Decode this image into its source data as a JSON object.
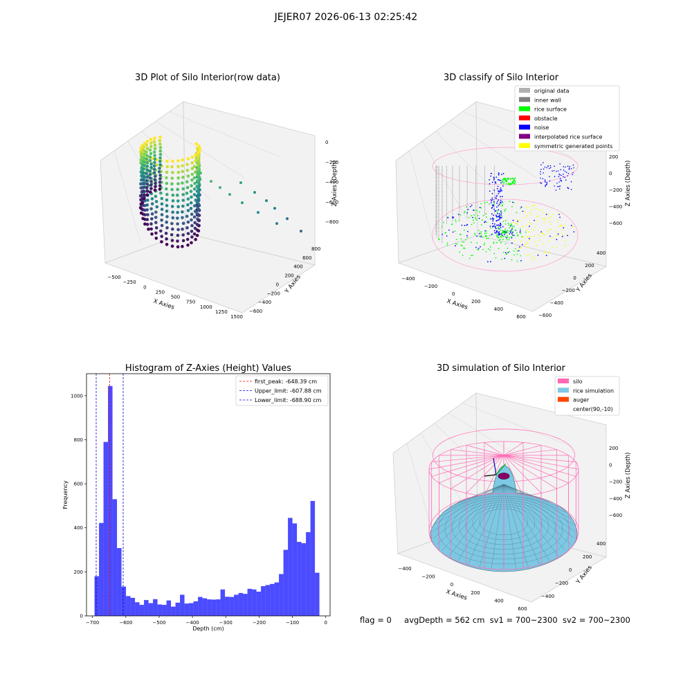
{
  "figure_title": "JEJER07 2026-06-13 02:25:42",
  "status": {
    "flag": "flag = 0",
    "avg_depth": "avgDepth = 562 cm",
    "sv1": "sv1 = 700~2300",
    "sv2": "sv2 = 700~2300"
  },
  "colors": {
    "hist_bar": "#4b4bff",
    "peak_line": "#ff0000",
    "limit_line": "#0000cc",
    "silo": "#ff69b4",
    "rice_sim": "#7ec8e3",
    "auger": "#ff4500",
    "inner_wall": "#808080",
    "rice_surface": "#00ff00",
    "obstacle": "#ff0000",
    "noise": "#0000ff",
    "interpolated": "#800080",
    "symmetric": "#ffff00",
    "original": "#b0b0b0"
  },
  "chart_data": [
    {
      "type": "scatter",
      "title": "3D Plot of Silo Interior(row data)",
      "xlabel": "X Axies",
      "ylabel": "Y Axies",
      "zlabel": "Z Axies (Depth)",
      "x_ticks": [
        "−500",
        "−250",
        "0",
        "250",
        "500",
        "750",
        "1000",
        "1250",
        "1500"
      ],
      "y_ticks": [
        "−600",
        "−400",
        "−200",
        "0",
        "200",
        "400",
        "600",
        "800"
      ],
      "z_ticks": [
        "0",
        "−200",
        "−400",
        "−600",
        "−800"
      ],
      "colormap": "viridis"
    },
    {
      "type": "scatter",
      "title": "3D classify of Silo Interior",
      "xlabel": "X Axies",
      "ylabel": "Y Axies",
      "zlabel": "Z Axies (Depth)",
      "x_ticks": [
        "−400",
        "−200",
        "0",
        "200",
        "400",
        "600"
      ],
      "y_ticks": [
        "−600",
        "−400",
        "−200",
        "0",
        "200",
        "400"
      ],
      "z_ticks": [
        "200",
        "0",
        "−200",
        "−400",
        "−600"
      ],
      "legend_position": "top-right",
      "legend": [
        {
          "label": "original data",
          "color": "#b0b0b0"
        },
        {
          "label": "inner wall",
          "color": "#808080"
        },
        {
          "label": "rice surface",
          "color": "#00ff00"
        },
        {
          "label": "obstacle",
          "color": "#ff0000"
        },
        {
          "label": "noise",
          "color": "#0000ff"
        },
        {
          "label": "interpolated rice surface",
          "color": "#800080"
        },
        {
          "label": "symmetric generated points",
          "color": "#ffff00"
        }
      ]
    },
    {
      "type": "bar",
      "title": "Histogram of Z-Axies (Height) Values",
      "xlabel": "Depth (cm)",
      "ylabel": "Frequency",
      "xlim": [
        -718,
        13
      ],
      "ylim": [
        0,
        1100
      ],
      "x_ticks": [
        -700,
        -600,
        -500,
        -400,
        -300,
        -200,
        -100,
        0
      ],
      "y_ticks": [
        0,
        200,
        400,
        600,
        800,
        1000
      ],
      "bin_start": -694,
      "bin_width": 13.5,
      "values": [
        180,
        422,
        790,
        1044,
        530,
        308,
        133,
        90,
        82,
        62,
        50,
        72,
        58,
        76,
        52,
        50,
        70,
        42,
        60,
        96,
        56,
        58,
        66,
        86,
        80,
        75,
        74,
        75,
        120,
        87,
        86,
        96,
        104,
        100,
        123,
        120,
        110,
        135,
        140,
        145,
        152,
        190,
        300,
        445,
        420,
        336,
        330,
        380,
        522,
        196
      ],
      "vlines": [
        {
          "x": -648.39,
          "label": "first_peak: -648.39 cm",
          "color": "#ff0000"
        },
        {
          "x": -607.88,
          "label": "Upper_limit: -607.88 cm",
          "color": "#0000cc"
        },
        {
          "x": -688.9,
          "label": "Lower_limit: -688.90 cm",
          "color": "#0000cc"
        }
      ],
      "legend_position": "top-right"
    },
    {
      "type": "area",
      "title": "3D simulation of Silo Interior",
      "xlabel": "X Axies",
      "ylabel": "Y Axies",
      "zlabel": "Z Axies (Depth)",
      "x_ticks": [
        "−400",
        "−200",
        "0",
        "200",
        "400",
        "600"
      ],
      "y_ticks": [
        "−400",
        "−200",
        "0",
        "200",
        "400"
      ],
      "z_ticks": [
        "200",
        "0",
        "−200",
        "−400",
        "−600"
      ],
      "legend_position": "top-right",
      "legend": [
        {
          "label": "silo",
          "color": "#ff69b4"
        },
        {
          "label": "rice simulation",
          "color": "#7ec8e3"
        },
        {
          "label": "auger",
          "color": "#ff4500"
        },
        {
          "label": "center(90,-10)",
          "color": ""
        }
      ]
    }
  ]
}
